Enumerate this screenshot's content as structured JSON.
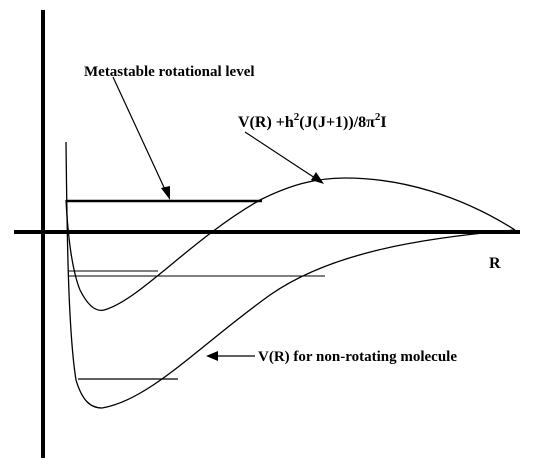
{
  "labels": {
    "metastable": "Metastable rotational level",
    "effective_prefix": "V(R) +h",
    "effective_sup1": "2",
    "effective_mid": "(J(J+1))/8π",
    "effective_sup2": "2",
    "effective_suffix": "I",
    "nonrotating": "V(R) for non-rotating molecule",
    "r_axis": "R"
  },
  "colors": {
    "ink": "#000000",
    "background": "#ffffff"
  }
}
